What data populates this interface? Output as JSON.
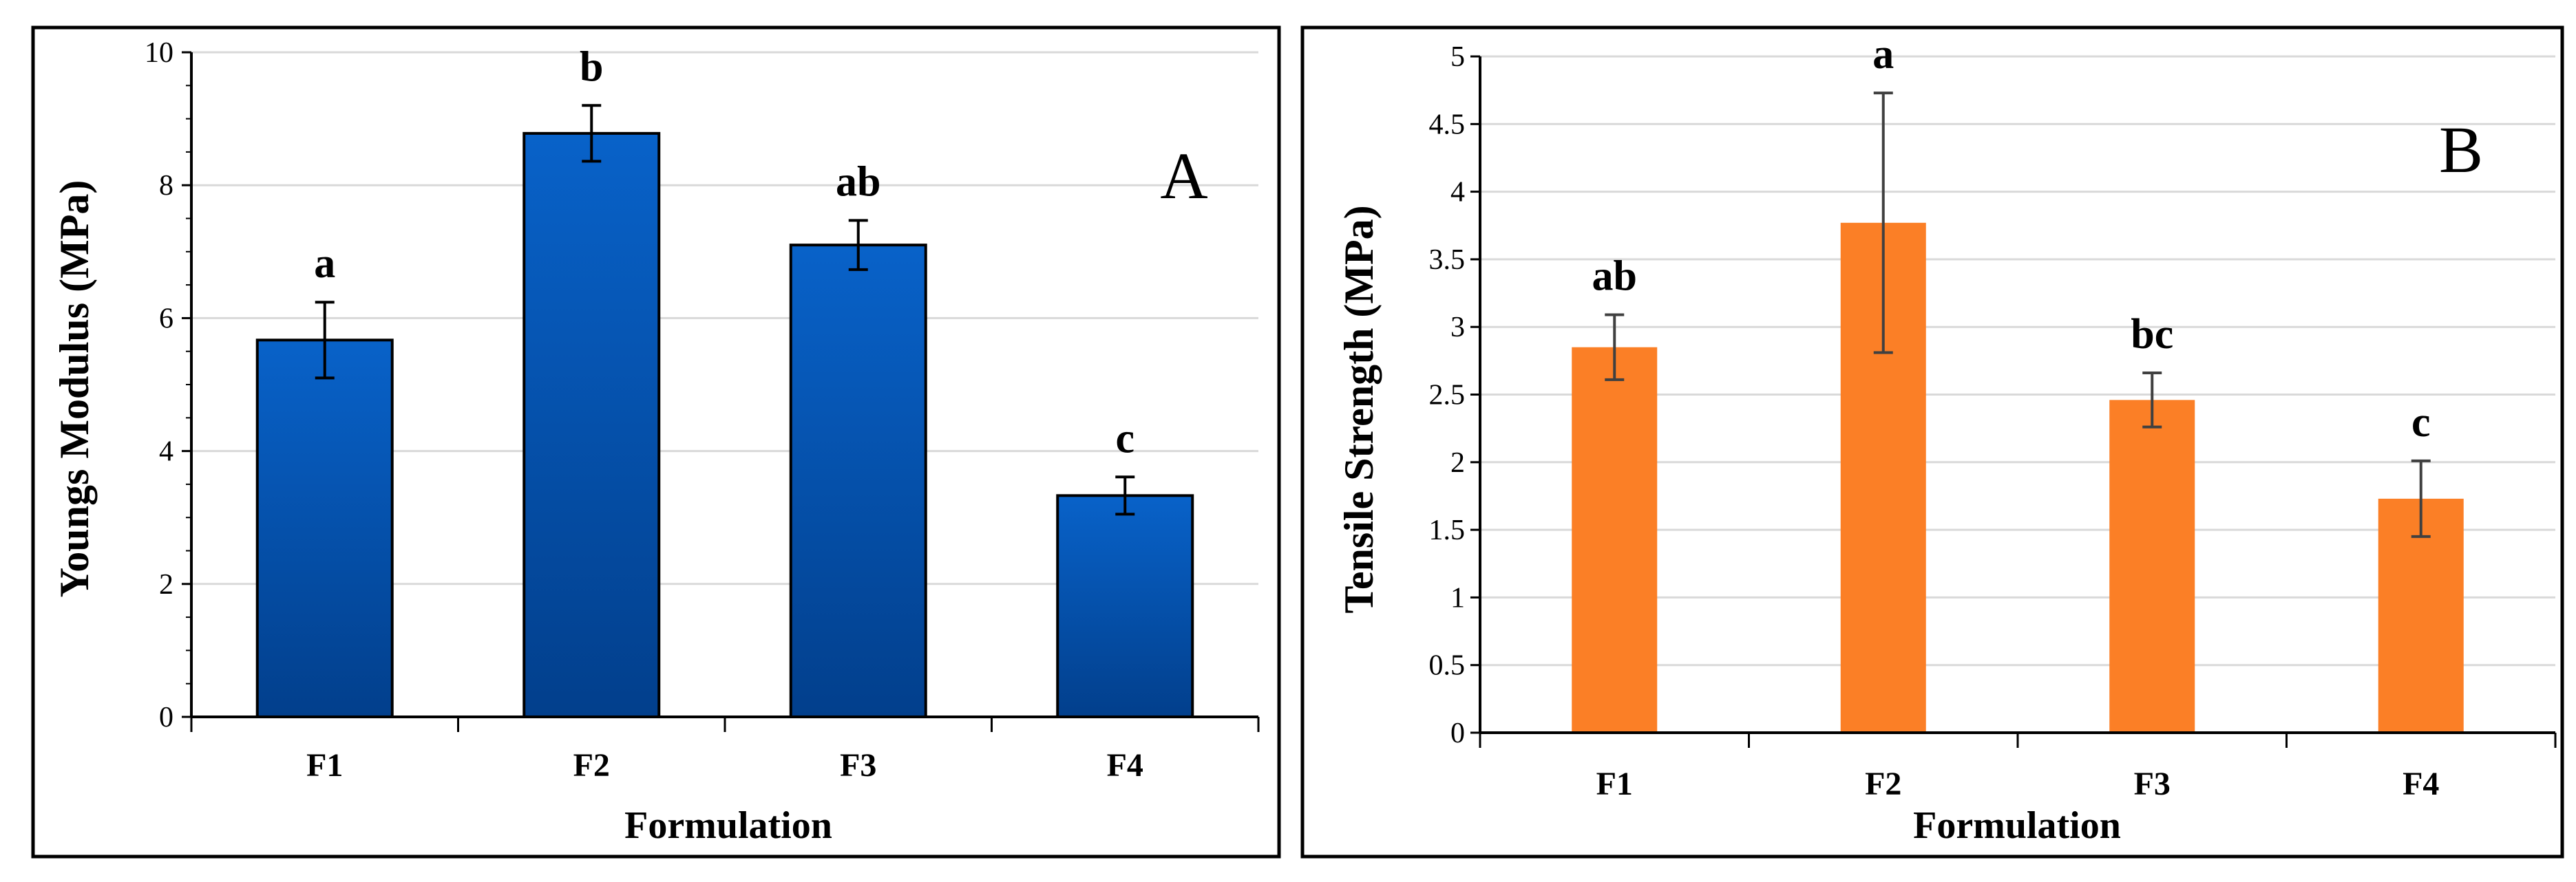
{
  "chart_data": [
    {
      "type": "bar",
      "panel_label": "A",
      "categories": [
        "F1",
        "F2",
        "F3",
        "F4"
      ],
      "values": [
        5.67,
        8.78,
        7.1,
        3.33
      ],
      "errors": [
        0.57,
        0.42,
        0.37,
        0.28
      ],
      "significance_letters": [
        "a",
        "b",
        "ab",
        "c"
      ],
      "xlabel": "Formulation",
      "ylabel": "Youngs Modulus (MPa)",
      "ylim": [
        0,
        10
      ],
      "yticks": [
        0,
        2,
        4,
        6,
        8,
        10
      ],
      "ytick_labels": [
        "0",
        "2",
        "4",
        "6",
        "8",
        "10"
      ],
      "grid": true,
      "bar_color": "#0862c9",
      "bar_color_dark": "#023f8c"
    },
    {
      "type": "bar",
      "panel_label": "B",
      "categories": [
        "F1",
        "F2",
        "F3",
        "F4"
      ],
      "values": [
        2.85,
        3.77,
        2.46,
        1.73
      ],
      "errors": [
        0.24,
        0.96,
        0.2,
        0.28
      ],
      "significance_letters": [
        "ab",
        "a",
        "bc",
        "c"
      ],
      "xlabel": "Formulation",
      "ylabel": "Tensile Strength (MPa)",
      "ylim": [
        0,
        5
      ],
      "yticks": [
        0,
        0.5,
        1,
        1.5,
        2,
        2.5,
        3,
        3.5,
        4,
        4.5,
        5
      ],
      "ytick_labels": [
        "0",
        "0.5",
        "1",
        "1.5",
        "2",
        "2.5",
        "3",
        "3.5",
        "4",
        "4.5",
        "5"
      ],
      "grid": true,
      "bar_color": "#fb7f26"
    }
  ]
}
